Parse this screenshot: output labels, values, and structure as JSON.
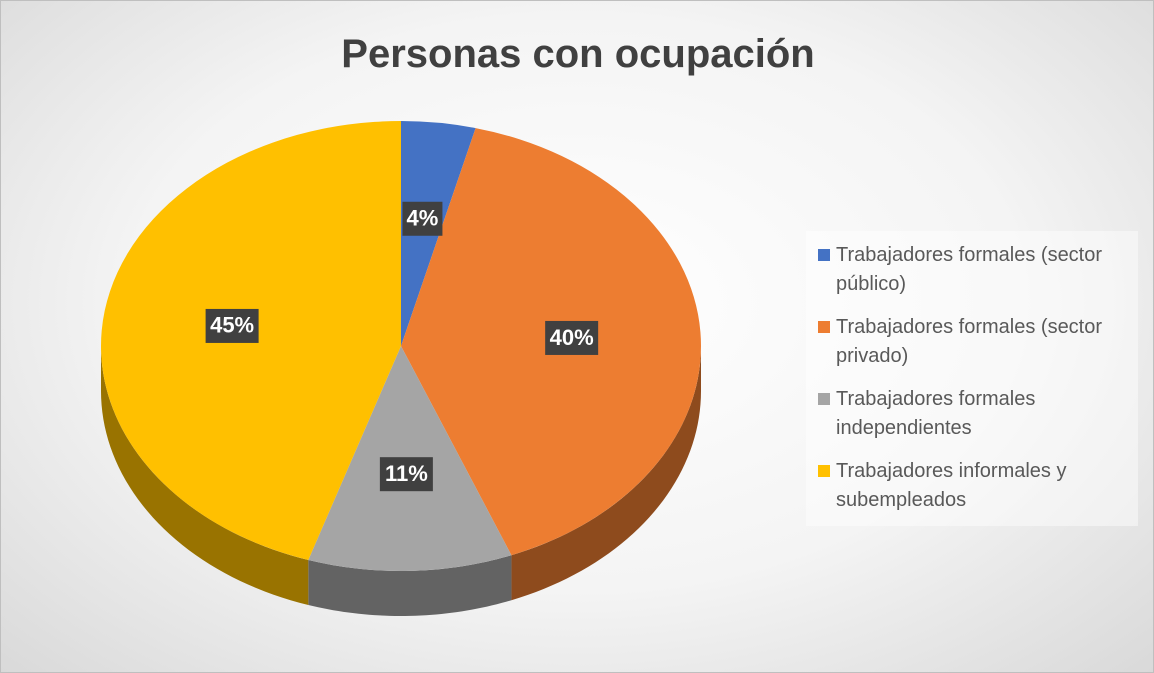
{
  "chart_data": {
    "type": "pie",
    "title": "Personas con ocupación",
    "categories": [
      "Trabajadores formales (sector público)",
      "Trabajadores formales (sector privado)",
      "Trabajadores formales independientes",
      "Trabajadores informales y subempleados"
    ],
    "values": [
      4,
      40,
      11,
      45
    ],
    "value_labels": [
      "4%",
      "40%",
      "11%",
      "45%"
    ],
    "colors": [
      "#4472c4",
      "#ed7d31",
      "#a5a5a5",
      "#ffc000"
    ],
    "legend": "right"
  }
}
